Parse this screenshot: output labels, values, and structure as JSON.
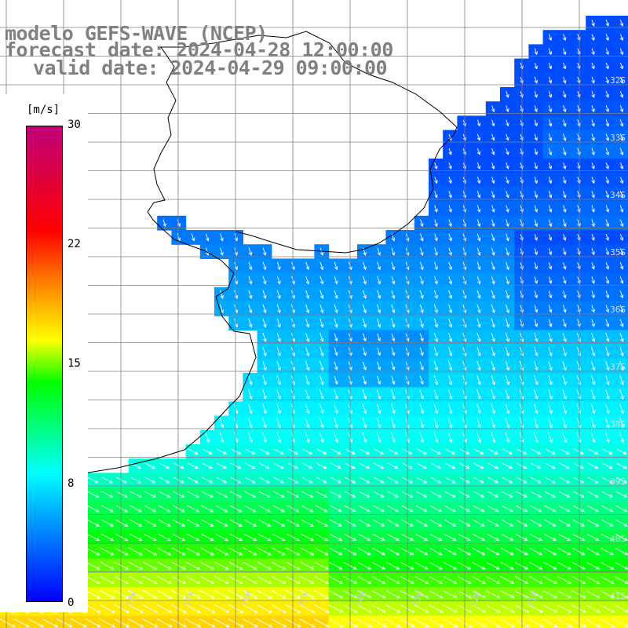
{
  "title": {
    "model": "modelo GEFS-WAVE (NCEP)",
    "forecast": "forecast date: 2024-04-28 12:00:00",
    "valid": "valid date: 2024-04-29 09:00:00"
  },
  "colorbar": {
    "unit": "[m/s]",
    "ticks": [
      "30",
      "22",
      "15",
      "8",
      "0"
    ],
    "range": [
      0,
      30
    ],
    "colors": [
      "#0000ff",
      "#0088ff",
      "#00ffff",
      "#00ff00",
      "#ffff00",
      "#ff8000",
      "#ff0000",
      "#c0007a"
    ]
  },
  "map": {
    "variable": "wind speed with direction arrows",
    "lat_labels": [
      "32S",
      "33S",
      "34S",
      "35S",
      "36S",
      "37S",
      "38S",
      "39S",
      "40S",
      "41S"
    ],
    "lon_labels": [
      "60W",
      "59W",
      "58W",
      "57W",
      "56W",
      "55W",
      "54W",
      "53W",
      "52W",
      "51W"
    ],
    "land_color": "#ffffff",
    "coast_color": "#000000",
    "grid_color": "#808080",
    "arrow_color": "#ffffff"
  }
}
